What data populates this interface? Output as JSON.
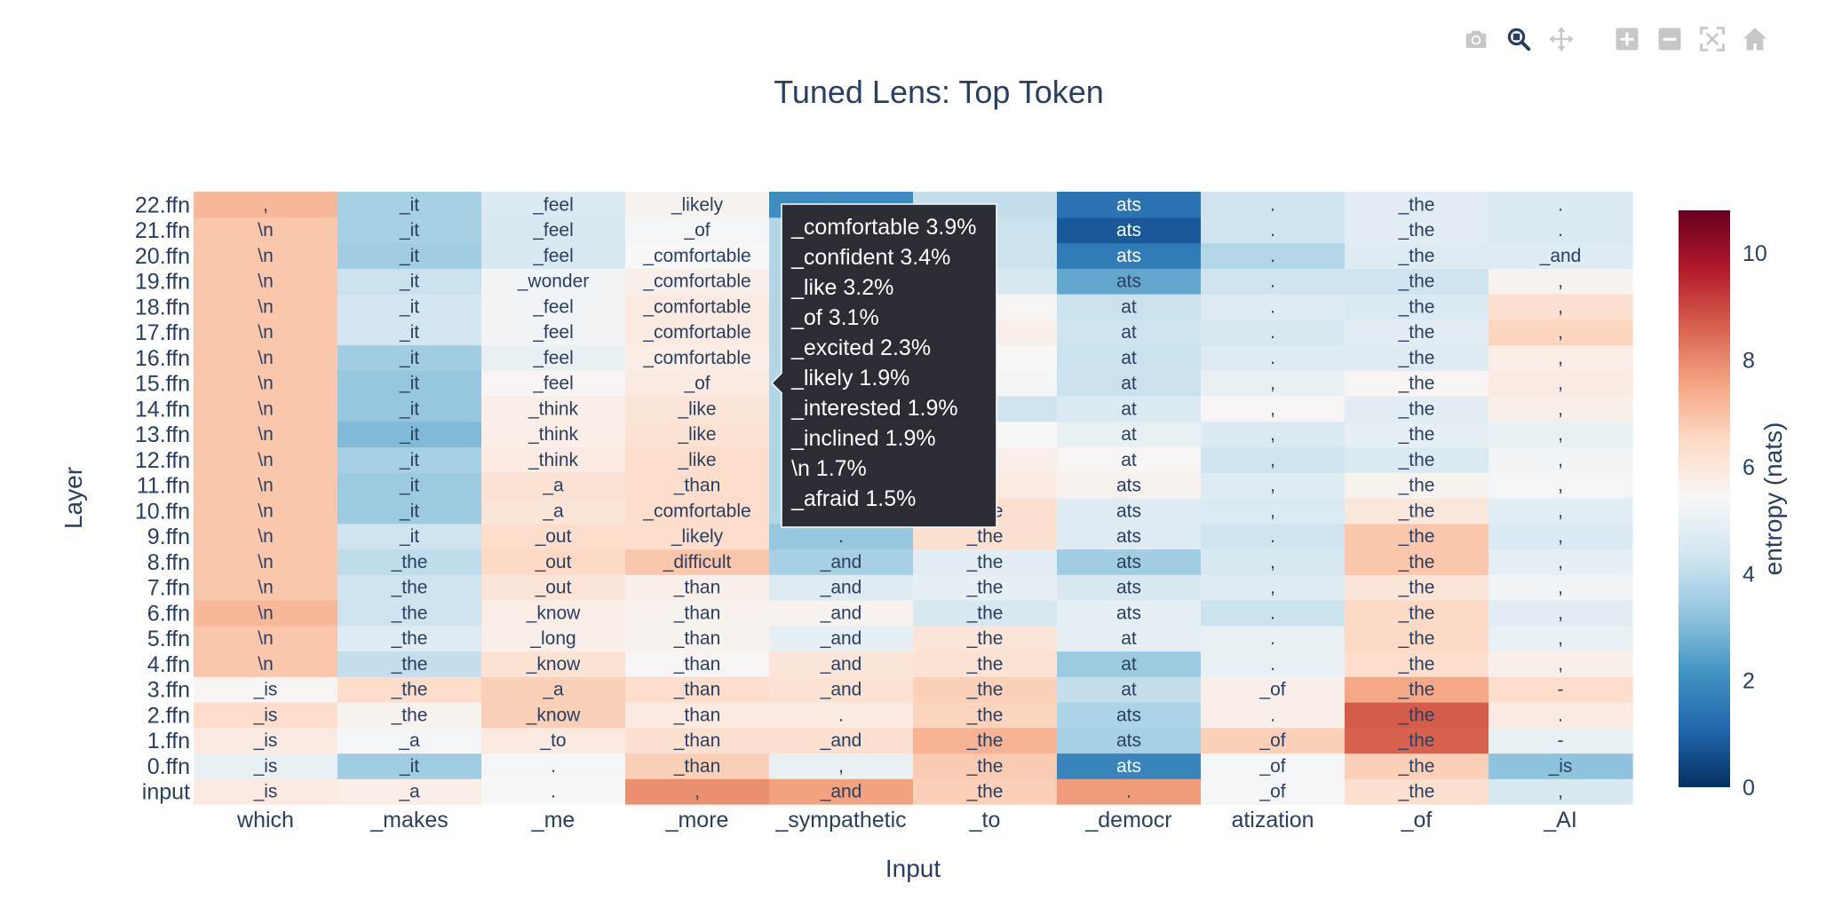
{
  "chart_data": {
    "type": "heatmap",
    "title": "Tuned Lens: Top Token",
    "xlabel": "Input",
    "ylabel": "Layer",
    "x_categories": [
      "which",
      "_makes",
      "_me",
      "_more",
      "_sympathetic",
      "_to",
      "_democr",
      "atization",
      "_of",
      "_AI"
    ],
    "y_categories": [
      "input",
      "0.ffn",
      "1.ffn",
      "2.ffn",
      "3.ffn",
      "4.ffn",
      "5.ffn",
      "6.ffn",
      "7.ffn",
      "8.ffn",
      "9.ffn",
      "10.ffn",
      "11.ffn",
      "12.ffn",
      "13.ffn",
      "14.ffn",
      "15.ffn",
      "16.ffn",
      "17.ffn",
      "18.ffn",
      "19.ffn",
      "20.ffn",
      "21.ffn",
      "22.ffn"
    ],
    "cell_text": [
      [
        "_is",
        "_a",
        ".",
        ",",
        "_and",
        "_the",
        ".",
        "_of",
        "_the",
        ","
      ],
      [
        "_is",
        "_it",
        ".",
        "_than",
        ",",
        "_the",
        "ats",
        "_of",
        "_the",
        "_is"
      ],
      [
        "_is",
        "_a",
        "_to",
        "_than",
        "_and",
        "_the",
        "ats",
        "_of",
        "_the",
        "-"
      ],
      [
        "_is",
        "_the",
        "_know",
        "_than",
        ".",
        "_the",
        "ats",
        ".",
        "_the",
        "."
      ],
      [
        "_is",
        "_the",
        "_a",
        "_than",
        "_and",
        "_the",
        "at",
        "_of",
        "_the",
        "-"
      ],
      [
        "\\n",
        "_the",
        "_know",
        "_than",
        "_and",
        "_the",
        "at",
        ".",
        "_the",
        ","
      ],
      [
        "\\n",
        "_the",
        "_long",
        "_than",
        "_and",
        "_the",
        "at",
        ".",
        "_the",
        ","
      ],
      [
        "\\n",
        "_the",
        "_know",
        "_than",
        "_and",
        "_the",
        "ats",
        ".",
        "_the",
        ","
      ],
      [
        "\\n",
        "_the",
        "_out",
        "_than",
        "_and",
        "_the",
        "ats",
        ",",
        "_the",
        ","
      ],
      [
        "\\n",
        "_the",
        "_out",
        "_difficult",
        "_and",
        "_the",
        "ats",
        ",",
        "_the",
        ","
      ],
      [
        "\\n",
        "_it",
        "_out",
        "_likely",
        ".",
        "_the",
        "ats",
        ".",
        "_the",
        ","
      ],
      [
        "\\n",
        "_it",
        "_a",
        "_comfortable",
        "_and",
        "_the",
        "ats",
        ",",
        "_the",
        ","
      ],
      [
        "\\n",
        "_it",
        "_a",
        "_than",
        "",
        "",
        "ats",
        ",",
        "_the",
        ","
      ],
      [
        "\\n",
        "_it",
        "_think",
        "_like",
        "",
        "",
        "at",
        ",",
        "_the",
        ","
      ],
      [
        "\\n",
        "_it",
        "_think",
        "_like",
        "",
        "",
        "at",
        ",",
        "_the",
        ","
      ],
      [
        "\\n",
        "_it",
        "_think",
        "_like",
        "",
        "",
        "at",
        ",",
        "_the",
        ","
      ],
      [
        "\\n",
        "_it",
        "_feel",
        "_of",
        "",
        "",
        "at",
        ",",
        "_the",
        ","
      ],
      [
        "\\n",
        "_it",
        "_feel",
        "_comfortable",
        "",
        "",
        "at",
        ".",
        "_the",
        ","
      ],
      [
        "\\n",
        "_it",
        "_feel",
        "_comfortable",
        "",
        "",
        "at",
        ".",
        "_the",
        ","
      ],
      [
        "\\n",
        "_it",
        "_feel",
        "_comfortable",
        "",
        "",
        "at",
        ".",
        "_the",
        ","
      ],
      [
        "\\n",
        "_it",
        "_wonder",
        "_comfortable",
        "",
        "",
        "ats",
        ".",
        "_the",
        ","
      ],
      [
        "\\n",
        "_it",
        "_feel",
        "_comfortable",
        "",
        "",
        "ats",
        ".",
        "_the",
        "_and"
      ],
      [
        "\\n",
        "_it",
        "_feel",
        "_of",
        "",
        "",
        "ats",
        ".",
        "_the",
        "."
      ],
      [
        ",",
        "_it",
        "_feel",
        "_likely",
        "",
        "",
        "ats",
        ".",
        "_the",
        "."
      ]
    ],
    "z": [
      [
        5.9,
        5.8,
        5.4,
        7.9,
        7.6,
        6.7,
        7.7,
        5.3,
        6.3,
        4.5
      ],
      [
        5.0,
        3.5,
        5.3,
        6.7,
        5.0,
        6.8,
        1.8,
        5.3,
        6.7,
        3.2
      ],
      [
        5.9,
        5.3,
        5.9,
        6.3,
        6.3,
        7.3,
        3.6,
        6.7,
        8.6,
        5.0
      ],
      [
        6.4,
        5.6,
        6.7,
        5.9,
        5.9,
        6.6,
        3.7,
        5.7,
        8.7,
        5.9
      ],
      [
        5.5,
        6.4,
        6.7,
        6.4,
        6.2,
        6.7,
        4.1,
        5.7,
        7.5,
        6.4
      ],
      [
        6.9,
        4.1,
        6.2,
        5.5,
        6.1,
        6.2,
        3.4,
        5.0,
        6.4,
        5.7
      ],
      [
        6.9,
        4.7,
        5.7,
        5.6,
        4.9,
        6.1,
        4.9,
        5.0,
        6.5,
        5.0
      ],
      [
        7.2,
        4.3,
        5.8,
        5.6,
        5.6,
        4.5,
        4.9,
        4.2,
        6.5,
        4.8
      ],
      [
        6.9,
        4.3,
        6.1,
        5.7,
        4.7,
        4.9,
        4.5,
        4.7,
        6.1,
        5.2
      ],
      [
        6.9,
        4.0,
        6.5,
        6.9,
        3.6,
        4.8,
        3.5,
        4.5,
        6.9,
        4.9
      ],
      [
        6.9,
        4.3,
        6.4,
        6.4,
        3.3,
        6.3,
        4.7,
        4.3,
        6.9,
        4.6
      ],
      [
        6.9,
        3.4,
        6.1,
        6.4,
        3.8,
        6.3,
        4.7,
        4.6,
        6.0,
        4.8
      ],
      [
        6.9,
        3.4,
        6.2,
        6.4,
        3.8,
        5.9,
        5.6,
        4.7,
        5.6,
        5.3
      ],
      [
        6.9,
        3.6,
        5.9,
        6.4,
        3.8,
        5.7,
        5.5,
        4.3,
        4.6,
        5.2
      ],
      [
        6.9,
        3.0,
        5.8,
        6.2,
        3.8,
        5.4,
        5.0,
        4.6,
        4.9,
        5.0
      ],
      [
        6.9,
        3.3,
        5.8,
        6.1,
        3.8,
        4.3,
        4.6,
        5.5,
        4.8,
        5.7
      ],
      [
        6.9,
        3.3,
        5.5,
        5.9,
        3.8,
        5.3,
        4.2,
        5.0,
        5.5,
        5.9
      ],
      [
        6.9,
        3.5,
        5.0,
        5.8,
        3.8,
        5.4,
        4.2,
        4.7,
        4.7,
        5.8
      ],
      [
        6.9,
        4.4,
        5.2,
        5.9,
        3.8,
        5.7,
        4.3,
        4.5,
        4.8,
        6.6
      ],
      [
        6.9,
        4.4,
        5.2,
        5.9,
        3.8,
        5.5,
        4.2,
        4.7,
        4.6,
        6.3
      ],
      [
        6.9,
        4.2,
        5.2,
        5.7,
        3.8,
        4.5,
        2.6,
        4.3,
        4.3,
        5.6
      ],
      [
        6.9,
        3.5,
        4.5,
        5.4,
        3.8,
        4.2,
        1.6,
        3.8,
        4.7,
        4.7
      ],
      [
        6.9,
        3.6,
        4.5,
        5.3,
        3.8,
        4.2,
        0.8,
        4.3,
        4.8,
        4.6
      ],
      [
        7.2,
        3.6,
        4.6,
        5.6,
        2.0,
        4.1,
        1.4,
        4.3,
        4.8,
        4.6
      ]
    ],
    "colorscale": [
      "#053061",
      "#2166ac",
      "#4393c3",
      "#92c5de",
      "#d1e5f0",
      "#f7f7f7",
      "#fddbc7",
      "#f4a582",
      "#d6604d",
      "#b2182b",
      "#67001f"
    ],
    "zlim": [
      0,
      10.8
    ],
    "colorbar": {
      "title": "entropy (nats)",
      "ticks": [
        0,
        2,
        4,
        6,
        8,
        10
      ]
    },
    "hover": {
      "row": "15.ffn",
      "column": "_sympathetic",
      "lines": [
        "_comfortable 3.9%",
        "_confident 3.4%",
        "_like 3.2%",
        "_of 3.1%",
        "_excited 2.3%",
        "_likely 1.9%",
        "_interested 1.9%",
        "_inclined 1.9%",
        "\\n 1.7%",
        "_afraid 1.5%"
      ]
    }
  },
  "modebar": {
    "icons": [
      "camera-icon",
      "zoom-icon",
      "pan-icon",
      "zoom-in-icon",
      "zoom-out-icon",
      "autoscale-icon",
      "reset-axes-icon"
    ],
    "active": "zoom-icon",
    "color": "#c7c7c7",
    "active_color": "#2a3f5f"
  }
}
